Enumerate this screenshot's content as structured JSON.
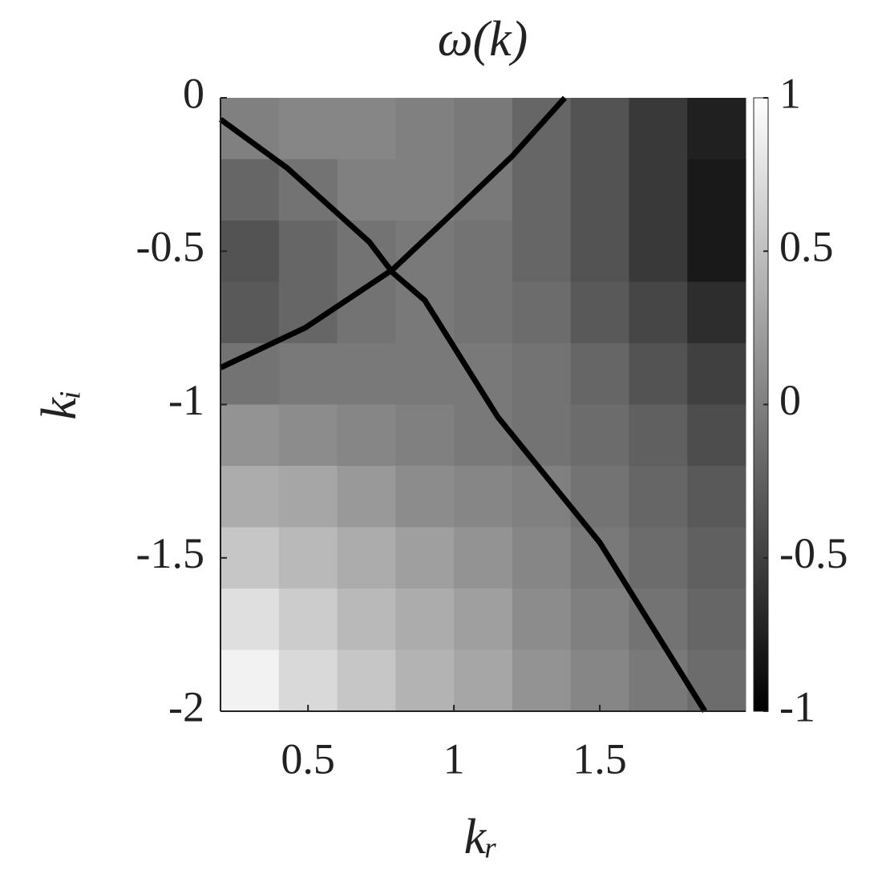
{
  "chart_data": {
    "type": "contour",
    "title": "ω(k)",
    "xlabel": "kᵣ",
    "ylabel": "kᵢ",
    "xlim": [
      0.2,
      2
    ],
    "ylim": [
      -2,
      0
    ],
    "xticks": [
      0.5,
      1,
      1.5
    ],
    "yticks": [
      0,
      -0.5,
      -1,
      -1.5,
      -2
    ],
    "clim": [
      -1,
      1
    ],
    "cticks": [
      1,
      0.5,
      0,
      -0.5,
      -1
    ],
    "colormap": "gray",
    "x": [
      0.3,
      0.5,
      0.7,
      0.9,
      1.1,
      1.3,
      1.5,
      1.7,
      1.9
    ],
    "y": [
      -0.1,
      -0.3,
      -0.5,
      -0.7,
      -0.9,
      -1.1,
      -1.3,
      -1.5,
      -1.7,
      -1.9
    ],
    "z": [
      [
        0.0,
        0.05,
        0.05,
        0.0,
        -0.05,
        -0.2,
        -0.35,
        -0.55,
        -0.75
      ],
      [
        -0.2,
        -0.1,
        0.0,
        0.0,
        -0.05,
        -0.2,
        -0.35,
        -0.55,
        -0.8
      ],
      [
        -0.35,
        -0.2,
        -0.1,
        -0.05,
        -0.1,
        -0.2,
        -0.35,
        -0.55,
        -0.8
      ],
      [
        -0.3,
        -0.2,
        -0.1,
        -0.05,
        -0.1,
        -0.15,
        -0.3,
        -0.45,
        -0.65
      ],
      [
        -0.1,
        -0.05,
        -0.05,
        -0.05,
        -0.05,
        -0.1,
        -0.2,
        -0.35,
        -0.5
      ],
      [
        0.15,
        0.1,
        0.05,
        0.0,
        -0.05,
        -0.1,
        -0.15,
        -0.25,
        -0.4
      ],
      [
        0.35,
        0.3,
        0.2,
        0.1,
        0.05,
        0.0,
        -0.1,
        -0.2,
        -0.3
      ],
      [
        0.55,
        0.45,
        0.35,
        0.25,
        0.15,
        0.05,
        -0.05,
        -0.15,
        -0.25
      ],
      [
        0.75,
        0.6,
        0.45,
        0.35,
        0.25,
        0.1,
        0.0,
        -0.1,
        -0.2
      ],
      [
        0.9,
        0.7,
        0.55,
        0.4,
        0.3,
        0.15,
        0.05,
        -0.05,
        -0.15
      ]
    ],
    "lines": [
      {
        "color": "#000000",
        "x": [
          0.2,
          0.43,
          0.71,
          0.79,
          0.9,
          1.15,
          1.5,
          1.86
        ],
        "y": [
          -0.07,
          -0.23,
          -0.47,
          -0.57,
          -0.66,
          -1.04,
          -1.45,
          -2
        ]
      },
      {
        "color": "#000000",
        "x": [
          0.2,
          0.49,
          0.79,
          0.98,
          1.2,
          1.38
        ],
        "y": [
          -0.88,
          -0.75,
          -0.56,
          -0.39,
          -0.19,
          0
        ]
      }
    ]
  }
}
